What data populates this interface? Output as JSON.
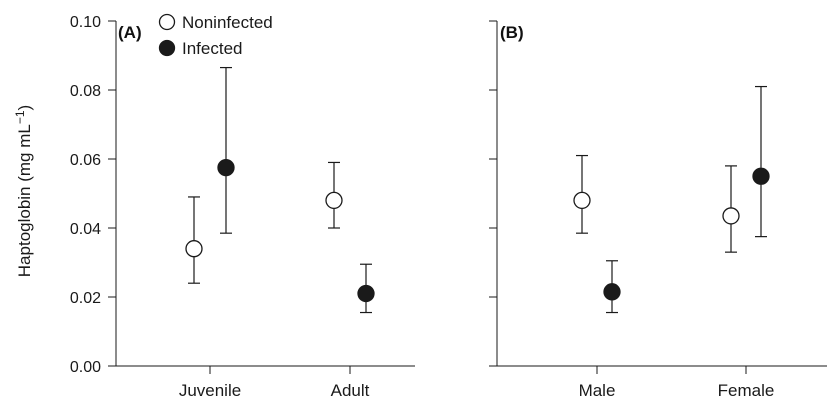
{
  "chart_data": {
    "type": "scatter",
    "ylabel": "Haptoglobin (mg mL",
    "ylabel_sup": "−1",
    "ylabel_close": ")",
    "ylim": [
      0,
      0.1
    ],
    "yticks": [
      "0.00",
      "0.02",
      "0.04",
      "0.06",
      "0.08",
      "0.10"
    ],
    "ytick_values": [
      0,
      0.02,
      0.04,
      0.06,
      0.08,
      0.1
    ],
    "legend": {
      "placement": "top-left",
      "entries": [
        {
          "name": "Noninfected",
          "marker": "open-circle"
        },
        {
          "name": "Infected",
          "marker": "filled-circle"
        }
      ]
    },
    "panels": [
      {
        "label": "(A)",
        "categories": [
          "Juvenile",
          "Adult"
        ],
        "series": [
          {
            "name": "Noninfected",
            "values": [
              0.034,
              0.048
            ],
            "lower": [
              0.024,
              0.04
            ],
            "upper": [
              0.049,
              0.059
            ]
          },
          {
            "name": "Infected",
            "values": [
              0.0575,
              0.021
            ],
            "lower": [
              0.0385,
              0.0155
            ],
            "upper": [
              0.0865,
              0.0295
            ]
          }
        ]
      },
      {
        "label": "(B)",
        "categories": [
          "Male",
          "Female"
        ],
        "series": [
          {
            "name": "Noninfected",
            "values": [
              0.048,
              0.0435
            ],
            "lower": [
              0.0385,
              0.033
            ],
            "upper": [
              0.061,
              0.058
            ]
          },
          {
            "name": "Infected",
            "values": [
              0.0215,
              0.055
            ],
            "lower": [
              0.0155,
              0.0375
            ],
            "upper": [
              0.0305,
              0.081
            ]
          }
        ]
      }
    ],
    "colors": {
      "marker_fill_infected": "#1a1a1a",
      "marker_fill_noninfected": "#ffffff",
      "stroke": "#1a1a1a"
    }
  }
}
